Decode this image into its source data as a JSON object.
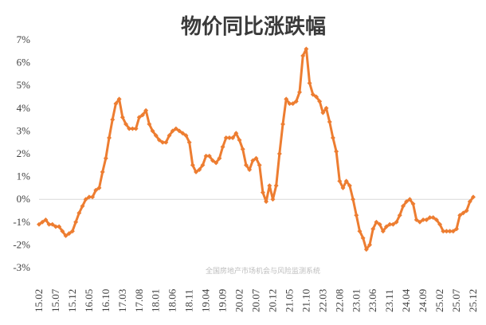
{
  "chart_data": {
    "type": "line",
    "title": "物价同比涨跌幅",
    "watermark": "全国房地产市场机会与风险监测系统",
    "y_tick_labels": [
      "7%",
      "6%",
      "5%",
      "4%",
      "3%",
      "2%",
      "1%",
      "0%",
      "-1%",
      "-2%",
      "-3%"
    ],
    "x_tick_labels": [
      "15.02",
      "15.07",
      "15.12",
      "16.05",
      "16.10",
      "17.03",
      "17.08",
      "18.01",
      "18.06",
      "18.11",
      "19.04",
      "19.09",
      "20.02",
      "20.07",
      "20.12",
      "21.05",
      "21.10",
      "22.03",
      "22.08",
      "23.01",
      "23.06",
      "23.11",
      "24.04",
      "24.09",
      "25.02",
      "25.07",
      "25.12"
    ],
    "ylim": [
      -3,
      7
    ],
    "grid": false,
    "legend": "none",
    "colors": {
      "line": "#ED7D31",
      "zero_line": "#d9d9d9"
    },
    "series": [
      {
        "values": [
          -1.1,
          -1.0,
          -0.9,
          -1.1,
          -1.1,
          -1.2,
          -1.2,
          -1.4,
          -1.6,
          -1.5,
          -1.4,
          -1.0,
          -0.6,
          -0.3,
          0.0,
          0.1,
          0.1,
          0.4,
          0.5,
          1.2,
          1.8,
          2.7,
          3.5,
          4.2,
          4.4,
          3.6,
          3.3,
          3.1,
          3.1,
          3.1,
          3.6,
          3.7,
          3.9,
          3.3,
          3.0,
          2.8,
          2.6,
          2.5,
          2.5,
          2.8,
          3.0,
          3.1,
          3.0,
          2.9,
          2.8,
          2.5,
          1.5,
          1.2,
          1.3,
          1.5,
          1.9,
          1.9,
          1.7,
          1.6,
          1.8,
          2.3,
          2.7,
          2.7,
          2.7,
          2.9,
          2.6,
          2.2,
          1.5,
          1.3,
          1.7,
          1.8,
          1.5,
          0.3,
          -0.1,
          0.6,
          0.0,
          0.6,
          2.0,
          3.3,
          4.4,
          4.2,
          4.2,
          4.3,
          4.7,
          6.3,
          6.6,
          5.1,
          4.6,
          4.5,
          4.3,
          3.8,
          4.0,
          3.4,
          2.7,
          2.1,
          0.8,
          0.5,
          0.8,
          0.6,
          0.0,
          -0.7,
          -1.4,
          -1.7,
          -2.2,
          -2.0,
          -1.3,
          -1.0,
          -1.1,
          -1.4,
          -1.2,
          -1.1,
          -1.1,
          -1.0,
          -0.7,
          -0.3,
          -0.1,
          -0.0,
          -0.2,
          -0.9,
          -1.0,
          -0.9,
          -0.9,
          -0.8,
          -0.8,
          -0.9,
          -1.1,
          -1.4,
          -1.4,
          -1.4,
          -1.4,
          -1.3,
          -0.7,
          -0.6,
          -0.5,
          -0.1,
          0.1
        ]
      }
    ]
  }
}
